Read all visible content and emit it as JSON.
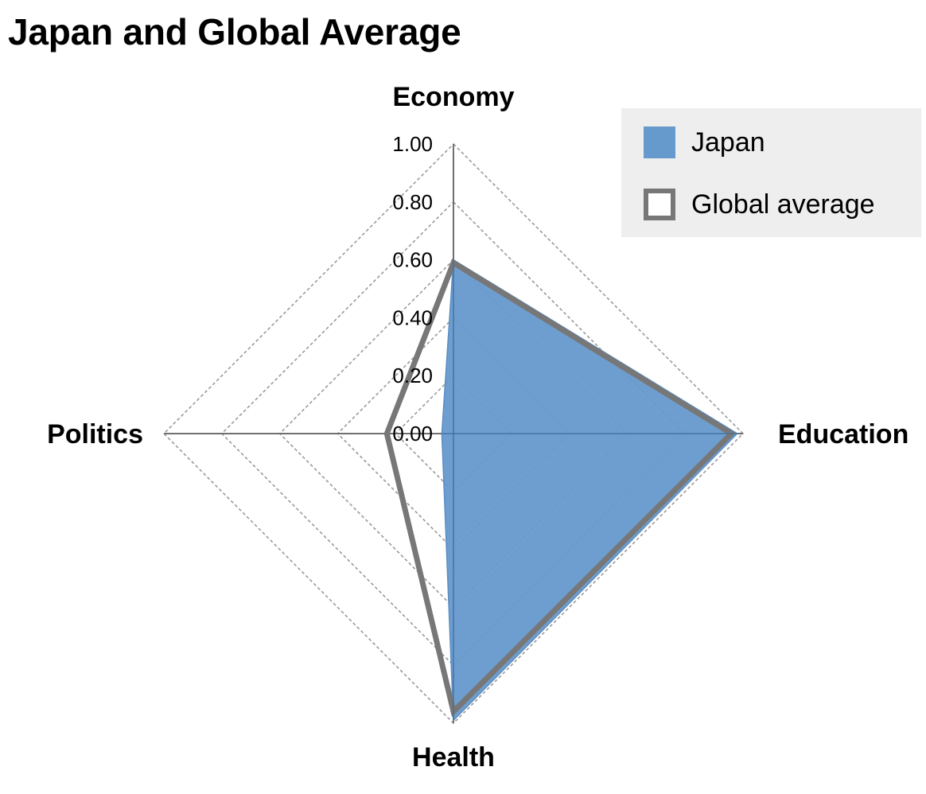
{
  "chart_data": {
    "type": "radar",
    "title": "Japan and Global Average",
    "axes": [
      "Economy",
      "Education",
      "Health",
      "Politics"
    ],
    "ticks": [
      "0.00",
      "0.20",
      "0.40",
      "0.60",
      "0.80",
      "1.00"
    ],
    "range": [
      0,
      1
    ],
    "grid": true,
    "grid_shape": "diamond",
    "legend_position": "top-right",
    "series": [
      {
        "name": "Japan",
        "values": [
          0.6,
          0.98,
          0.99,
          0.04
        ],
        "style": "filled",
        "color": "#6699cc"
      },
      {
        "name": "Global average",
        "values": [
          0.59,
          0.96,
          0.96,
          0.23
        ],
        "style": "outline",
        "color": "#777777"
      }
    ]
  }
}
